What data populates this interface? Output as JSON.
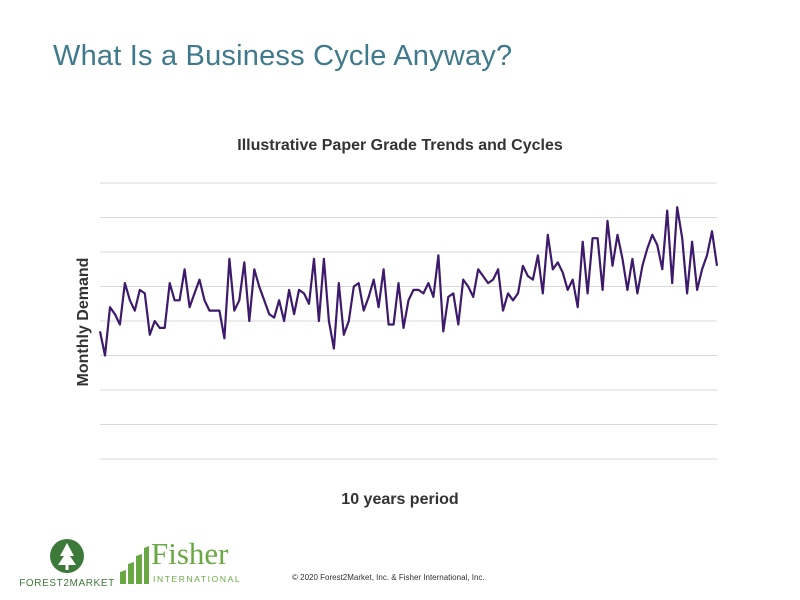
{
  "slide": {
    "title": "What Is a Business Cycle Anyway?",
    "copyright": "© 2020 Forest2Market, Inc. & Fisher International, Inc."
  },
  "logos": {
    "forest2market": "FOREST2MARKET",
    "fisher_name": "Fisher",
    "fisher_sub": "INTERNATIONAL"
  },
  "colors": {
    "title": "#3f7a8c",
    "line": "#3d1a6b",
    "grid": "#d9d9d9",
    "brand_green": "#6aa843"
  },
  "chart_data": {
    "type": "line",
    "title": "Illustrative Paper Grade Trends and Cycles",
    "xlabel": "10 years period",
    "ylabel": "Monthly Demand",
    "ylim": [
      0,
      8
    ],
    "grid": true,
    "legend": false,
    "series": [
      {
        "values": [
          3.7,
          3.0,
          4.4,
          4.2,
          3.9,
          5.1,
          4.6,
          4.3,
          4.9,
          4.8,
          3.6,
          4.0,
          3.8,
          3.8,
          5.1,
          4.6,
          4.6,
          5.5,
          4.4,
          4.8,
          5.2,
          4.6,
          4.3,
          4.3,
          4.3,
          3.5,
          5.8,
          4.3,
          4.6,
          5.7,
          4.0,
          5.5,
          5.0,
          4.6,
          4.2,
          4.1,
          4.6,
          4.0,
          4.9,
          4.2,
          4.9,
          4.8,
          4.5,
          5.8,
          4.0,
          5.8,
          4.0,
          3.2,
          5.1,
          3.6,
          4.0,
          5.0,
          5.1,
          4.3,
          4.7,
          5.2,
          4.4,
          5.5,
          3.9,
          3.9,
          5.1,
          3.8,
          4.6,
          4.9,
          4.9,
          4.8,
          5.1,
          4.7,
          5.9,
          3.7,
          4.7,
          4.8,
          3.9,
          5.2,
          5.0,
          4.7,
          5.5,
          5.3,
          5.1,
          5.2,
          5.5,
          4.3,
          4.8,
          4.6,
          4.8,
          5.6,
          5.3,
          5.2,
          5.9,
          4.8,
          6.5,
          5.5,
          5.7,
          5.4,
          4.9,
          5.2,
          4.4,
          6.3,
          4.8,
          6.4,
          6.4,
          4.9,
          6.9,
          5.6,
          6.5,
          5.8,
          4.9,
          5.8,
          4.8,
          5.6,
          6.1,
          6.5,
          6.2,
          5.5,
          7.2,
          5.1,
          7.3,
          6.4,
          4.8,
          6.3,
          4.9,
          5.5,
          5.9,
          6.6,
          5.6
        ]
      }
    ]
  }
}
